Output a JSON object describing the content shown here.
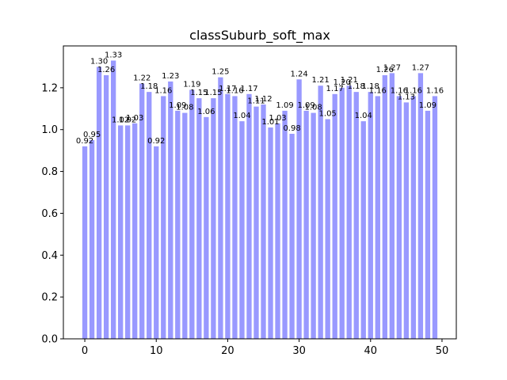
{
  "chart_data": {
    "type": "bar",
    "title": "classSuburb_soft_max",
    "xlabel": "",
    "ylabel": "",
    "bar_color": "#9999ff",
    "xlim": [
      -3,
      52
    ],
    "ylim": [
      0,
      1.4
    ],
    "x_ticks": [
      "0",
      "10",
      "20",
      "30",
      "40",
      "50"
    ],
    "y_ticks": [
      "0.0",
      "0.2",
      "0.4",
      "0.6",
      "0.8",
      "1.0",
      "1.2"
    ],
    "x": [
      0,
      1,
      2,
      3,
      4,
      5,
      6,
      7,
      8,
      9,
      10,
      11,
      12,
      13,
      14,
      15,
      16,
      17,
      18,
      19,
      20,
      21,
      22,
      23,
      24,
      25,
      26,
      27,
      28,
      29,
      30,
      31,
      32,
      33,
      34,
      35,
      36,
      37,
      38,
      39,
      40,
      41,
      42,
      43,
      44,
      45,
      46,
      47,
      48,
      49
    ],
    "values": [
      0.92,
      0.95,
      1.3,
      1.26,
      1.33,
      1.02,
      1.02,
      1.03,
      1.22,
      1.18,
      0.92,
      1.16,
      1.23,
      1.09,
      1.08,
      1.19,
      1.15,
      1.06,
      1.15,
      1.25,
      1.17,
      1.16,
      1.04,
      1.17,
      1.11,
      1.12,
      1.01,
      1.03,
      1.09,
      0.98,
      1.24,
      1.09,
      1.08,
      1.21,
      1.05,
      1.17,
      1.2,
      1.21,
      1.18,
      1.04,
      1.18,
      1.16,
      1.26,
      1.27,
      1.16,
      1.13,
      1.16,
      1.27,
      1.09,
      1.16
    ],
    "labels": [
      "0.92",
      "0.95",
      "1.30",
      "1.26",
      "1.33",
      "1.02",
      "1.02",
      "1.03",
      "1.22",
      "1.18",
      "0.92",
      "1.16",
      "1.23",
      "1.09",
      "1.08",
      "1.19",
      "1.15",
      "1.06",
      "1.15",
      "1.25",
      "1.17",
      "1.16",
      "1.04",
      "1.17",
      "1.11",
      "1.12",
      "1.01",
      "1.03",
      "1.09",
      "0.98",
      "1.24",
      "1.09",
      "1.08",
      "1.21",
      "1.05",
      "1.17",
      "1.20",
      "1.21",
      "1.18",
      "1.04",
      "1.18",
      "1.16",
      "1.26",
      "1.27",
      "1.16",
      "1.13",
      "1.16",
      "1.27",
      "1.09",
      "1.16"
    ],
    "grid": false,
    "legend": "none"
  }
}
